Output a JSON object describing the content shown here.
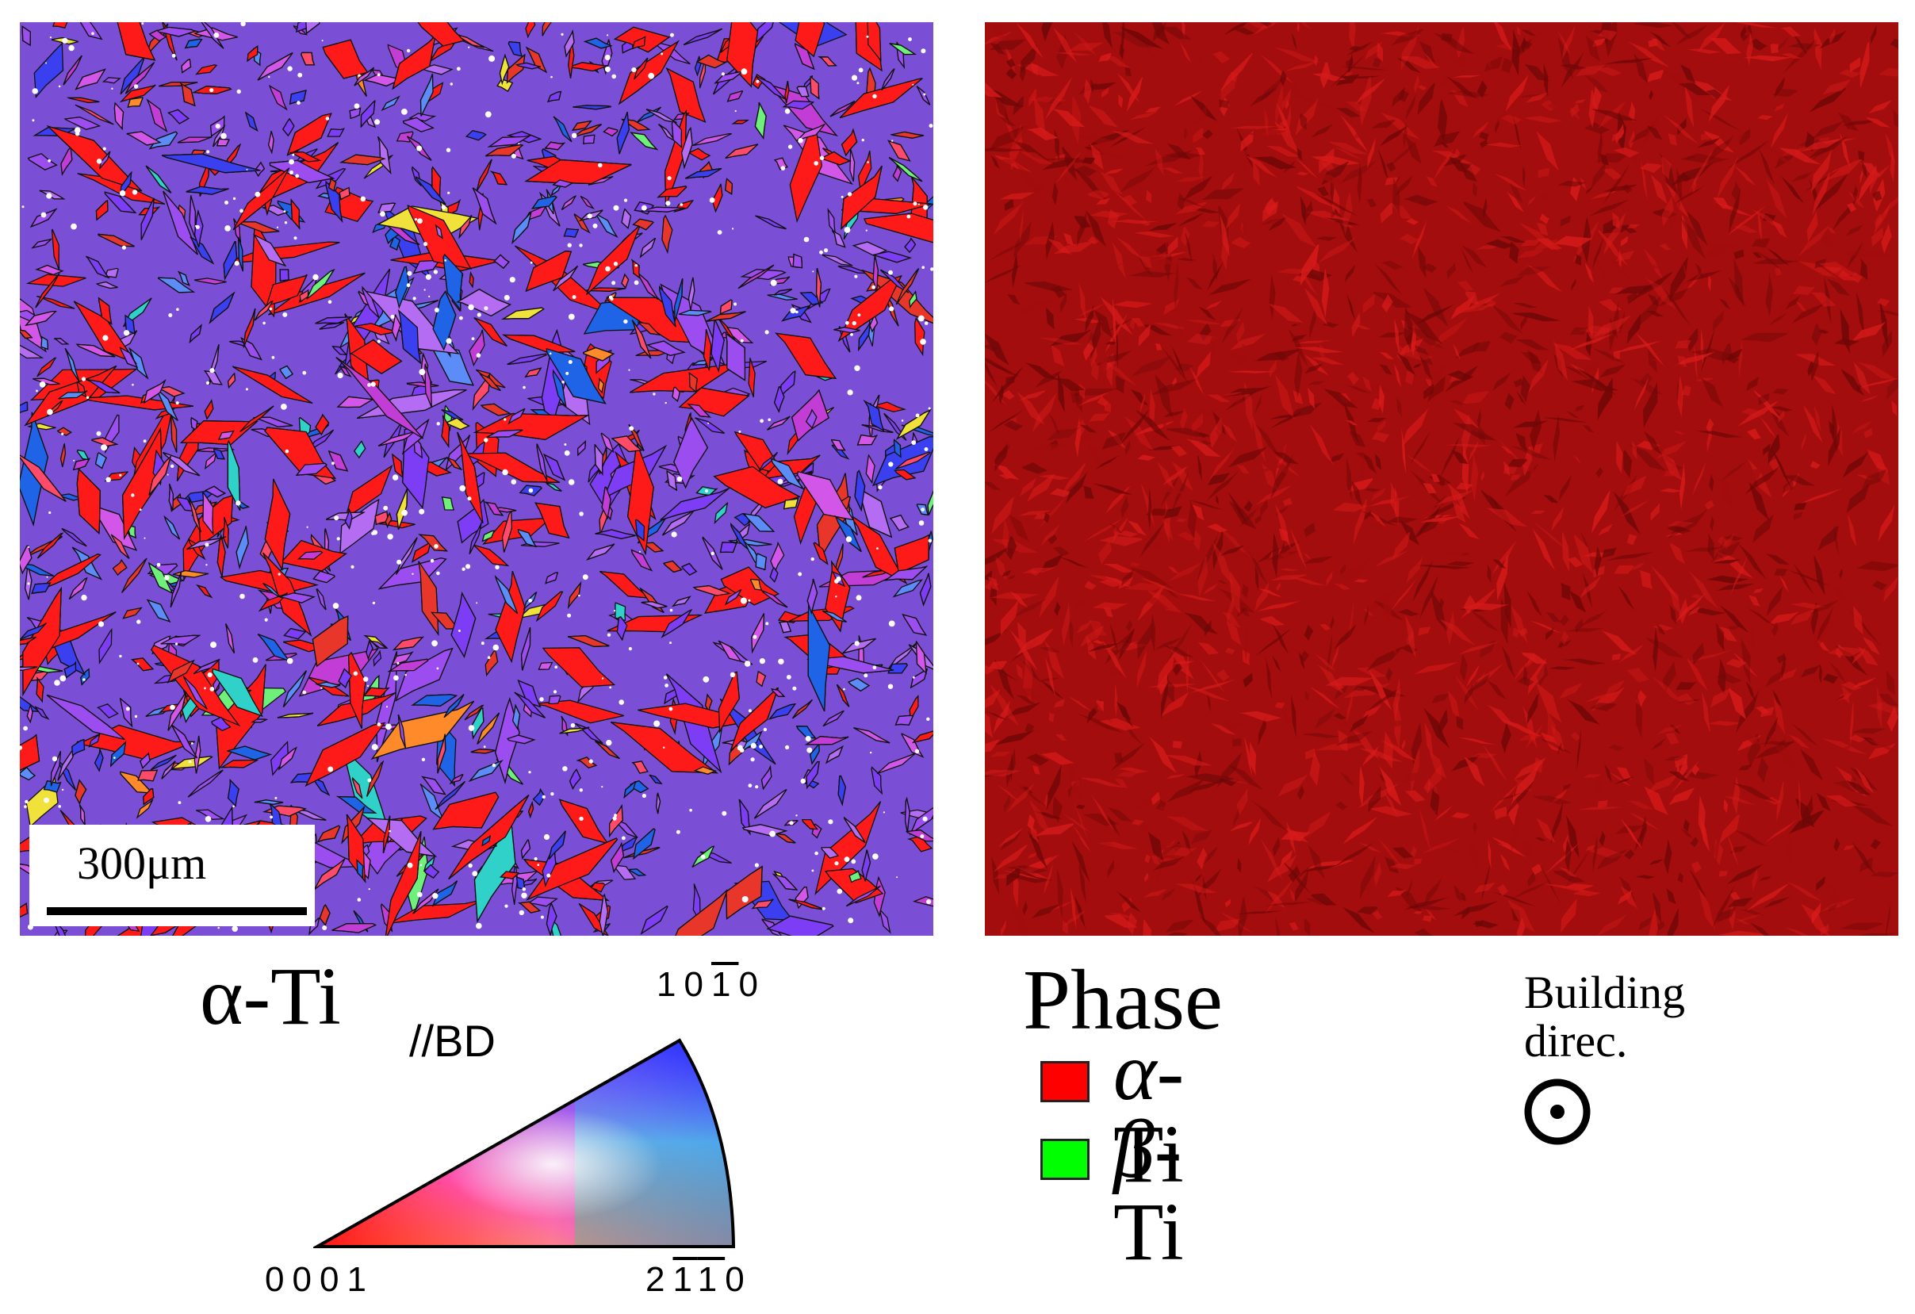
{
  "ipf_map": {
    "scale_bar_label": "300μm"
  },
  "phase_map": {},
  "ipf_legend": {
    "title": "α-Ti",
    "reference": "//BD",
    "corner_top": {
      "digits": [
        "1",
        "0",
        "1",
        "0"
      ],
      "overlined_index": 2
    },
    "corner_left": {
      "digits": [
        "0",
        "0",
        "0",
        "1"
      ],
      "overlined_index": -1
    },
    "corner_right": {
      "digits": [
        "2",
        "1",
        "1",
        "0"
      ],
      "overlined_indices": [
        1,
        2
      ]
    }
  },
  "phase_legend": {
    "title": "Phase",
    "items": [
      {
        "symbol": "α",
        "label": "-Ti",
        "color": "#ff0000"
      },
      {
        "symbol": "β",
        "label": "-Ti",
        "color": "#00ff00"
      }
    ]
  },
  "building_direction": {
    "label_line1": "Building",
    "label_line2": "direc.",
    "icon": "out-of-plane-arrow-icon"
  },
  "colors": {
    "ipf_palette": [
      "#ff1a1a",
      "#e8362b",
      "#9b4df0",
      "#7d3df5",
      "#b46cf2",
      "#3a3ff0",
      "#1f63e6",
      "#c23cd6",
      "#ff4a6a",
      "#2fd1c8",
      "#6ef07a",
      "#f0e23a",
      "#ff8a2a",
      "#d257e8",
      "#5b8cf7"
    ],
    "phase_base": "#a30d0d",
    "phase_light": "#d61a1a",
    "phase_dark": "#6e0707"
  }
}
